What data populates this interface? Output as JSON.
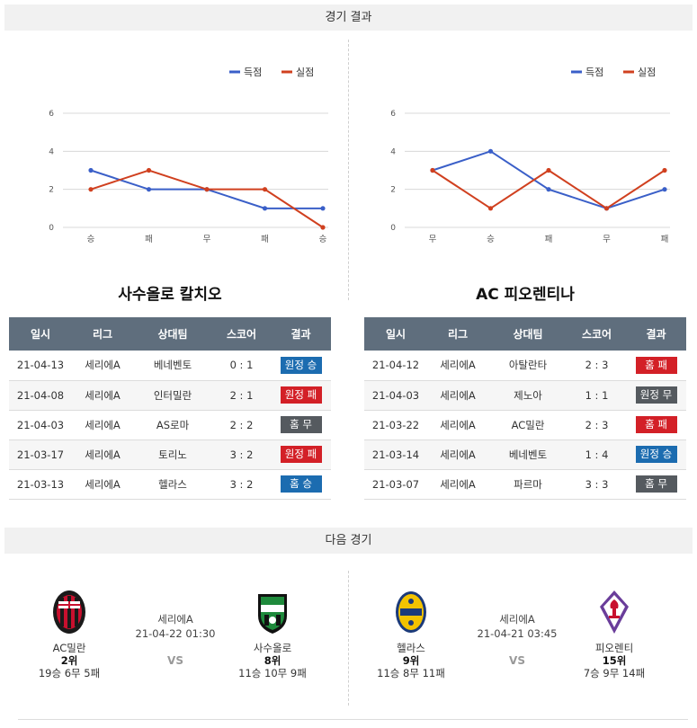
{
  "headers": {
    "results": "경기 결과",
    "next": "다음 경기"
  },
  "legend": {
    "scored": "득점",
    "conceded": "실점"
  },
  "colors": {
    "scored": "#3a5fc8",
    "conceded": "#d0401f",
    "win": "#1c6cb0",
    "lose": "#d32027",
    "draw": "#555a5f"
  },
  "chart_data": [
    {
      "type": "line",
      "categories": [
        "승",
        "패",
        "무",
        "패",
        "승"
      ],
      "series": [
        {
          "name": "득점",
          "values": [
            3,
            2,
            2,
            1,
            1
          ]
        },
        {
          "name": "실점",
          "values": [
            2,
            3,
            2,
            2,
            0
          ]
        }
      ],
      "yticks": [
        0,
        2,
        4,
        6
      ],
      "ylim": [
        0,
        6
      ],
      "grid": true,
      "legend": "top-right"
    },
    {
      "type": "line",
      "categories": [
        "무",
        "승",
        "패",
        "무",
        "패"
      ],
      "series": [
        {
          "name": "득점",
          "values": [
            3,
            4,
            2,
            1,
            2
          ]
        },
        {
          "name": "실점",
          "values": [
            3,
            1,
            3,
            1,
            3
          ]
        }
      ],
      "yticks": [
        0,
        2,
        4,
        6
      ],
      "ylim": [
        0,
        6
      ],
      "grid": true,
      "legend": "top-right"
    }
  ],
  "teams": {
    "left": {
      "name": "사수올로 칼치오",
      "columns": [
        "일시",
        "리그",
        "상대팀",
        "스코어",
        "결과"
      ],
      "rows": [
        {
          "date": "21-04-13",
          "league": "세리에A",
          "opponent": "베네벤토",
          "score": "0 : 1",
          "result": "원정 승",
          "type": "win"
        },
        {
          "date": "21-04-08",
          "league": "세리에A",
          "opponent": "인터밀란",
          "score": "2 : 1",
          "result": "원정 패",
          "type": "lose"
        },
        {
          "date": "21-04-03",
          "league": "세리에A",
          "opponent": "AS로마",
          "score": "2 : 2",
          "result": "홈 무",
          "type": "draw"
        },
        {
          "date": "21-03-17",
          "league": "세리에A",
          "opponent": "토리노",
          "score": "3 : 2",
          "result": "원정 패",
          "type": "lose"
        },
        {
          "date": "21-03-13",
          "league": "세리에A",
          "opponent": "헬라스",
          "score": "3 : 2",
          "result": "홈 승",
          "type": "win"
        }
      ]
    },
    "right": {
      "name": "AC 피오렌티나",
      "columns": [
        "일시",
        "리그",
        "상대팀",
        "스코어",
        "결과"
      ],
      "rows": [
        {
          "date": "21-04-12",
          "league": "세리에A",
          "opponent": "아탈란타",
          "score": "2 : 3",
          "result": "홈 패",
          "type": "lose"
        },
        {
          "date": "21-04-03",
          "league": "세리에A",
          "opponent": "제노아",
          "score": "1 : 1",
          "result": "원정 무",
          "type": "draw"
        },
        {
          "date": "21-03-22",
          "league": "세리에A",
          "opponent": "AC밀란",
          "score": "2 : 3",
          "result": "홈 패",
          "type": "lose"
        },
        {
          "date": "21-03-14",
          "league": "세리에A",
          "opponent": "베네벤토",
          "score": "1 : 4",
          "result": "원정 승",
          "type": "win"
        },
        {
          "date": "21-03-07",
          "league": "세리에A",
          "opponent": "파르마",
          "score": "3 : 3",
          "result": "홈 무",
          "type": "draw"
        }
      ]
    }
  },
  "next_matches": [
    {
      "league": "세리에A",
      "datetime": "21-04-22 01:30",
      "vs": "VS",
      "home": {
        "name": "AC밀란",
        "rank": "2위",
        "record": "19승 6무 5패",
        "crest": "ac-milan-crest-icon"
      },
      "away": {
        "name": "사수올로",
        "rank": "8위",
        "record": "11승 10무 9패",
        "crest": "sassuolo-crest-icon"
      }
    },
    {
      "league": "세리에A",
      "datetime": "21-04-21 03:45",
      "vs": "VS",
      "home": {
        "name": "헬라스",
        "rank": "9위",
        "record": "11승 8무 11패",
        "crest": "hellas-verona-crest-icon"
      },
      "away": {
        "name": "피오렌티",
        "rank": "15위",
        "record": "7승 9무 14패",
        "crest": "fiorentina-crest-icon"
      }
    }
  ]
}
